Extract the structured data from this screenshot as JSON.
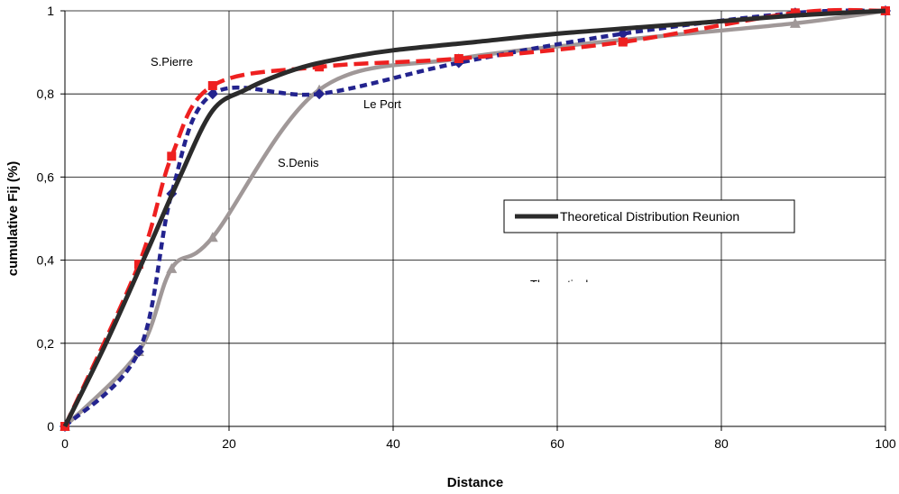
{
  "chart_data": {
    "type": "line",
    "title": "",
    "xlabel": "Distance",
    "ylabel": "cumulative Fij (%)",
    "xlim": [
      0,
      100
    ],
    "ylim": [
      0,
      1
    ],
    "x_ticks": [
      "0",
      "20",
      "40",
      "60",
      "80",
      "100"
    ],
    "y_ticks": [
      "0",
      "0,2",
      "0,4",
      "0,6",
      "0,8",
      "1"
    ],
    "grid": true,
    "legend_position": "right",
    "series": [
      {
        "name": "Theoretical Distribution Reunion",
        "color": "#2b2b2b",
        "style": "solid",
        "marker": "none",
        "x": [
          0,
          5,
          10,
          14,
          18,
          22,
          26,
          30,
          35,
          40,
          50,
          60,
          70,
          80,
          90,
          100
        ],
        "y": [
          0,
          0.2,
          0.42,
          0.6,
          0.76,
          0.81,
          0.845,
          0.87,
          0.89,
          0.905,
          0.925,
          0.945,
          0.96,
          0.975,
          0.99,
          1.0
        ]
      },
      {
        "name": "S.Pierre",
        "color": "#ee2020",
        "style": "dashed",
        "marker": "square",
        "x": [
          0,
          9,
          13,
          18,
          31,
          48,
          68,
          89,
          100
        ],
        "y": [
          0,
          0.39,
          0.65,
          0.82,
          0.865,
          0.885,
          0.925,
          0.995,
          1.0
        ],
        "label": "S.Pierre"
      },
      {
        "name": "Le Port",
        "color": "#23238e",
        "style": "dotted",
        "marker": "diamond",
        "x": [
          0,
          9,
          13,
          18,
          31,
          48,
          68,
          89,
          100
        ],
        "y": [
          0,
          0.18,
          0.56,
          0.8,
          0.8,
          0.875,
          0.945,
          0.995,
          1.0
        ],
        "label": "Le Port"
      },
      {
        "name": "S.Denis",
        "color": "#a09898",
        "style": "solid",
        "marker": "triangle",
        "x": [
          0,
          9,
          13,
          18,
          31,
          48,
          68,
          89,
          100
        ],
        "y": [
          0,
          0.18,
          0.38,
          0.455,
          0.81,
          0.885,
          0.93,
          0.97,
          1.0
        ],
        "label": "S.Denis"
      }
    ],
    "annotations": [
      "S.Pierre",
      "Le Port",
      "S.Denis"
    ],
    "legend": [
      "Theoretical Distribution Reunion"
    ],
    "partial_text": "Theoretical"
  }
}
